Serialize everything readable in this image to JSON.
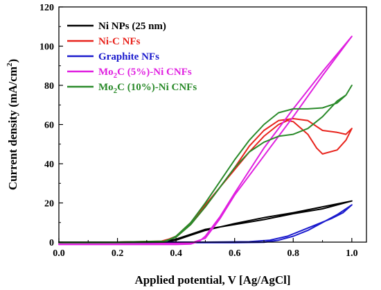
{
  "chart_data": {
    "type": "line",
    "title": "",
    "xlabel": "Applied potential, V [Ag/AgCl]",
    "ylabel_parts": [
      "Current density (mA/cm",
      "2",
      ")"
    ],
    "xlim": [
      0.0,
      1.05
    ],
    "ylim": [
      0,
      120
    ],
    "x_ticks": [
      "0.0",
      "0.2",
      "0.4",
      "0.6",
      "0.8",
      "1.0"
    ],
    "x_tick_values": [
      0.0,
      0.2,
      0.4,
      0.6,
      0.8,
      1.0
    ],
    "y_ticks": [
      "0",
      "20",
      "40",
      "60",
      "80",
      "100",
      "120"
    ],
    "y_tick_values": [
      0,
      20,
      40,
      60,
      80,
      100,
      120
    ],
    "grid": false,
    "legend_position": "top-left",
    "series": [
      {
        "name_parts": [
          "Ni NPs (25 nm)"
        ],
        "name": "Ni NPs (25 nm)",
        "color": "#000000",
        "points": [
          [
            0.0,
            -0.3
          ],
          [
            0.2,
            -0.2
          ],
          [
            0.35,
            0.0
          ],
          [
            0.4,
            1.0
          ],
          [
            0.45,
            3.5
          ],
          [
            0.5,
            6.0
          ],
          [
            0.6,
            9.5
          ],
          [
            0.7,
            12.5
          ],
          [
            0.8,
            15.0
          ],
          [
            0.9,
            18.0
          ],
          [
            1.0,
            21.0
          ],
          [
            0.9,
            17.0
          ],
          [
            0.8,
            14.5
          ],
          [
            0.7,
            11.5
          ],
          [
            0.6,
            9.0
          ],
          [
            0.5,
            6.5
          ],
          [
            0.45,
            4.0
          ],
          [
            0.4,
            1.5
          ],
          [
            0.35,
            0.3
          ],
          [
            0.2,
            0.0
          ],
          [
            0.0,
            0.0
          ]
        ]
      },
      {
        "name_parts": [
          "Ni-C NFs"
        ],
        "name": "Ni-C NFs",
        "color": "#e8231c",
        "points": [
          [
            0.0,
            -0.3
          ],
          [
            0.2,
            -0.2
          ],
          [
            0.35,
            0.0
          ],
          [
            0.4,
            3.0
          ],
          [
            0.45,
            10.0
          ],
          [
            0.5,
            19.0
          ],
          [
            0.55,
            28.0
          ],
          [
            0.6,
            37.0
          ],
          [
            0.65,
            46.0
          ],
          [
            0.7,
            54.0
          ],
          [
            0.75,
            60.0
          ],
          [
            0.78,
            62.0
          ],
          [
            0.8,
            61.5
          ],
          [
            0.85,
            55.0
          ],
          [
            0.88,
            48.0
          ],
          [
            0.9,
            45.0
          ],
          [
            0.95,
            47.0
          ],
          [
            0.98,
            52.0
          ],
          [
            1.0,
            58.0
          ],
          [
            0.98,
            55.0
          ],
          [
            0.95,
            56.0
          ],
          [
            0.9,
            57.0
          ],
          [
            0.85,
            62.0
          ],
          [
            0.8,
            63.0
          ],
          [
            0.75,
            62.0
          ],
          [
            0.7,
            57.0
          ],
          [
            0.65,
            49.0
          ],
          [
            0.6,
            38.0
          ],
          [
            0.55,
            28.0
          ],
          [
            0.5,
            18.0
          ],
          [
            0.45,
            9.0
          ],
          [
            0.4,
            2.5
          ],
          [
            0.35,
            0.5
          ],
          [
            0.2,
            0.0
          ],
          [
            0.0,
            0.0
          ]
        ]
      },
      {
        "name_parts": [
          "Graphite NFs"
        ],
        "name": "Graphite NFs",
        "color": "#1a1acd",
        "points": [
          [
            0.0,
            -0.3
          ],
          [
            0.2,
            -0.3
          ],
          [
            0.4,
            -0.3
          ],
          [
            0.6,
            -0.3
          ],
          [
            0.7,
            -0.1
          ],
          [
            0.75,
            1.0
          ],
          [
            0.8,
            3.0
          ],
          [
            0.85,
            6.0
          ],
          [
            0.9,
            10.0
          ],
          [
            0.95,
            14.0
          ],
          [
            1.0,
            19.0
          ],
          [
            0.97,
            15.0
          ],
          [
            0.93,
            12.0
          ],
          [
            0.88,
            9.0
          ],
          [
            0.83,
            6.0
          ],
          [
            0.78,
            3.0
          ],
          [
            0.72,
            1.0
          ],
          [
            0.65,
            0.2
          ],
          [
            0.5,
            0.0
          ],
          [
            0.3,
            0.0
          ],
          [
            0.0,
            0.0
          ]
        ]
      },
      {
        "name_parts": [
          "Mo",
          "2",
          "C (5%)-Ni CNFs"
        ],
        "name": "Mo2C (5%)-Ni CNFs",
        "color": "#e020e0",
        "points": [
          [
            0.0,
            -1.2
          ],
          [
            0.2,
            -1.2
          ],
          [
            0.4,
            -1.2
          ],
          [
            0.45,
            -1.0
          ],
          [
            0.48,
            0.5
          ],
          [
            0.5,
            3.0
          ],
          [
            0.55,
            13.0
          ],
          [
            0.6,
            25.0
          ],
          [
            0.7,
            48.0
          ],
          [
            0.8,
            68.0
          ],
          [
            0.9,
            87.0
          ],
          [
            1.0,
            105.0
          ],
          [
            0.9,
            85.0
          ],
          [
            0.8,
            64.0
          ],
          [
            0.7,
            44.0
          ],
          [
            0.6,
            24.0
          ],
          [
            0.55,
            12.0
          ],
          [
            0.5,
            2.0
          ],
          [
            0.45,
            -0.5
          ],
          [
            0.3,
            -0.8
          ],
          [
            0.0,
            -0.8
          ]
        ]
      },
      {
        "name_parts": [
          "Mo",
          "2",
          "C (10%)-Ni CNFs"
        ],
        "name": "Mo2C (10%)-Ni CNFs",
        "color": "#2a8a2a",
        "points": [
          [
            0.0,
            -0.3
          ],
          [
            0.2,
            -0.2
          ],
          [
            0.36,
            0.0
          ],
          [
            0.4,
            3.0
          ],
          [
            0.45,
            10.0
          ],
          [
            0.5,
            20.0
          ],
          [
            0.55,
            31.0
          ],
          [
            0.6,
            42.0
          ],
          [
            0.65,
            52.0
          ],
          [
            0.7,
            60.0
          ],
          [
            0.75,
            66.0
          ],
          [
            0.8,
            68.0
          ],
          [
            0.85,
            68.0
          ],
          [
            0.9,
            68.5
          ],
          [
            0.95,
            71.0
          ],
          [
            0.98,
            75.0
          ],
          [
            1.0,
            80.0
          ],
          [
            0.98,
            75.0
          ],
          [
            0.95,
            72.0
          ],
          [
            0.9,
            64.0
          ],
          [
            0.85,
            58.0
          ],
          [
            0.8,
            55.0
          ],
          [
            0.75,
            54.0
          ],
          [
            0.7,
            51.0
          ],
          [
            0.65,
            46.0
          ],
          [
            0.6,
            38.0
          ],
          [
            0.55,
            28.0
          ],
          [
            0.5,
            18.0
          ],
          [
            0.45,
            9.0
          ],
          [
            0.4,
            2.5
          ],
          [
            0.36,
            0.5
          ],
          [
            0.2,
            0.0
          ],
          [
            0.0,
            0.0
          ]
        ]
      }
    ]
  }
}
